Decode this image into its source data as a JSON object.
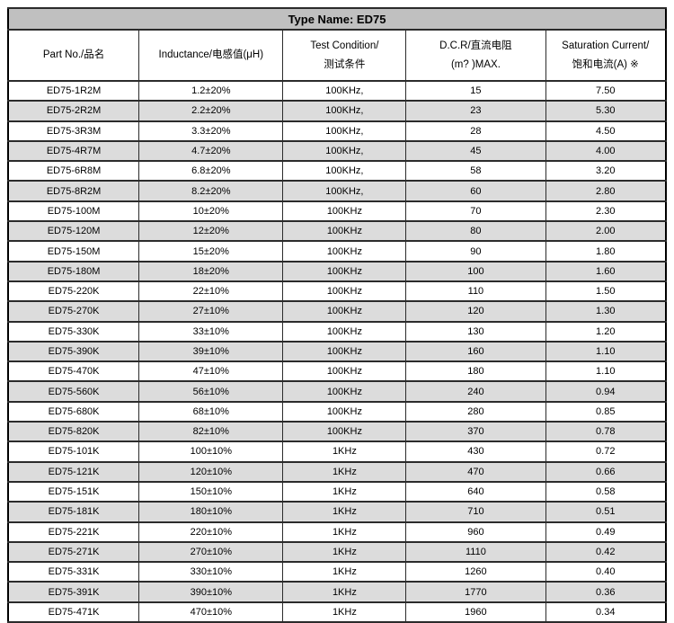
{
  "title": "Type Name: ED75",
  "table": {
    "columns": [
      {
        "line1": "Part No./品名",
        "line2": ""
      },
      {
        "line1": "Inductance/电感值(μH)",
        "line2": ""
      },
      {
        "line1": "Test Condition/",
        "line2": "测试条件"
      },
      {
        "line1": "D.C.R/直流电阻",
        "line2": "(m? )MAX."
      },
      {
        "line1": "Saturation Current/",
        "line2": "饱和电流(A) ※"
      }
    ],
    "rows": [
      [
        "ED75-1R2M",
        "1.2±20%",
        "100KHz,",
        "15",
        "7.50"
      ],
      [
        "ED75-2R2M",
        "2.2±20%",
        "100KHz,",
        "23",
        "5.30"
      ],
      [
        "ED75-3R3M",
        "3.3±20%",
        "100KHz,",
        "28",
        "4.50"
      ],
      [
        "ED75-4R7M",
        "4.7±20%",
        "100KHz,",
        "45",
        "4.00"
      ],
      [
        "ED75-6R8M",
        "6.8±20%",
        "100KHz,",
        "58",
        "3.20"
      ],
      [
        "ED75-8R2M",
        "8.2±20%",
        "100KHz,",
        "60",
        "2.80"
      ],
      [
        "ED75-100M",
        "10±20%",
        "100KHz",
        "70",
        "2.30"
      ],
      [
        "ED75-120M",
        "12±20%",
        "100KHz",
        "80",
        "2.00"
      ],
      [
        "ED75-150M",
        "15±20%",
        "100KHz",
        "90",
        "1.80"
      ],
      [
        "ED75-180M",
        "18±20%",
        "100KHz",
        "100",
        "1.60"
      ],
      [
        "ED75-220K",
        "22±10%",
        "100KHz",
        "110",
        "1.50"
      ],
      [
        "ED75-270K",
        "27±10%",
        "100KHz",
        "120",
        "1.30"
      ],
      [
        "ED75-330K",
        "33±10%",
        "100KHz",
        "130",
        "1.20"
      ],
      [
        "ED75-390K",
        "39±10%",
        "100KHz",
        "160",
        "1.10"
      ],
      [
        "ED75-470K",
        "47±10%",
        "100KHz",
        "180",
        "1.10"
      ],
      [
        "ED75-560K",
        "56±10%",
        "100KHz",
        "240",
        "0.94"
      ],
      [
        "ED75-680K",
        "68±10%",
        "100KHz",
        "280",
        "0.85"
      ],
      [
        "ED75-820K",
        "82±10%",
        "100KHz",
        "370",
        "0.78"
      ],
      [
        "ED75-101K",
        "100±10%",
        "1KHz",
        "430",
        "0.72"
      ],
      [
        "ED75-121K",
        "120±10%",
        "1KHz",
        "470",
        "0.66"
      ],
      [
        "ED75-151K",
        "150±10%",
        "1KHz",
        "640",
        "0.58"
      ],
      [
        "ED75-181K",
        "180±10%",
        "1KHz",
        "710",
        "0.51"
      ],
      [
        "ED75-221K",
        "220±10%",
        "1KHz",
        "960",
        "0.49"
      ],
      [
        "ED75-271K",
        "270±10%",
        "1KHz",
        "1110",
        "0.42"
      ],
      [
        "ED75-331K",
        "330±10%",
        "1KHz",
        "1260",
        "0.40"
      ],
      [
        "ED75-391K",
        "390±10%",
        "1KHz",
        "1770",
        "0.36"
      ],
      [
        "ED75-471K",
        "470±10%",
        "1KHz",
        "1960",
        "0.34"
      ]
    ]
  },
  "colors": {
    "title_bg": "#c0c0c0",
    "row_alt_bg": "#dcdcdc",
    "border": "#000000"
  }
}
